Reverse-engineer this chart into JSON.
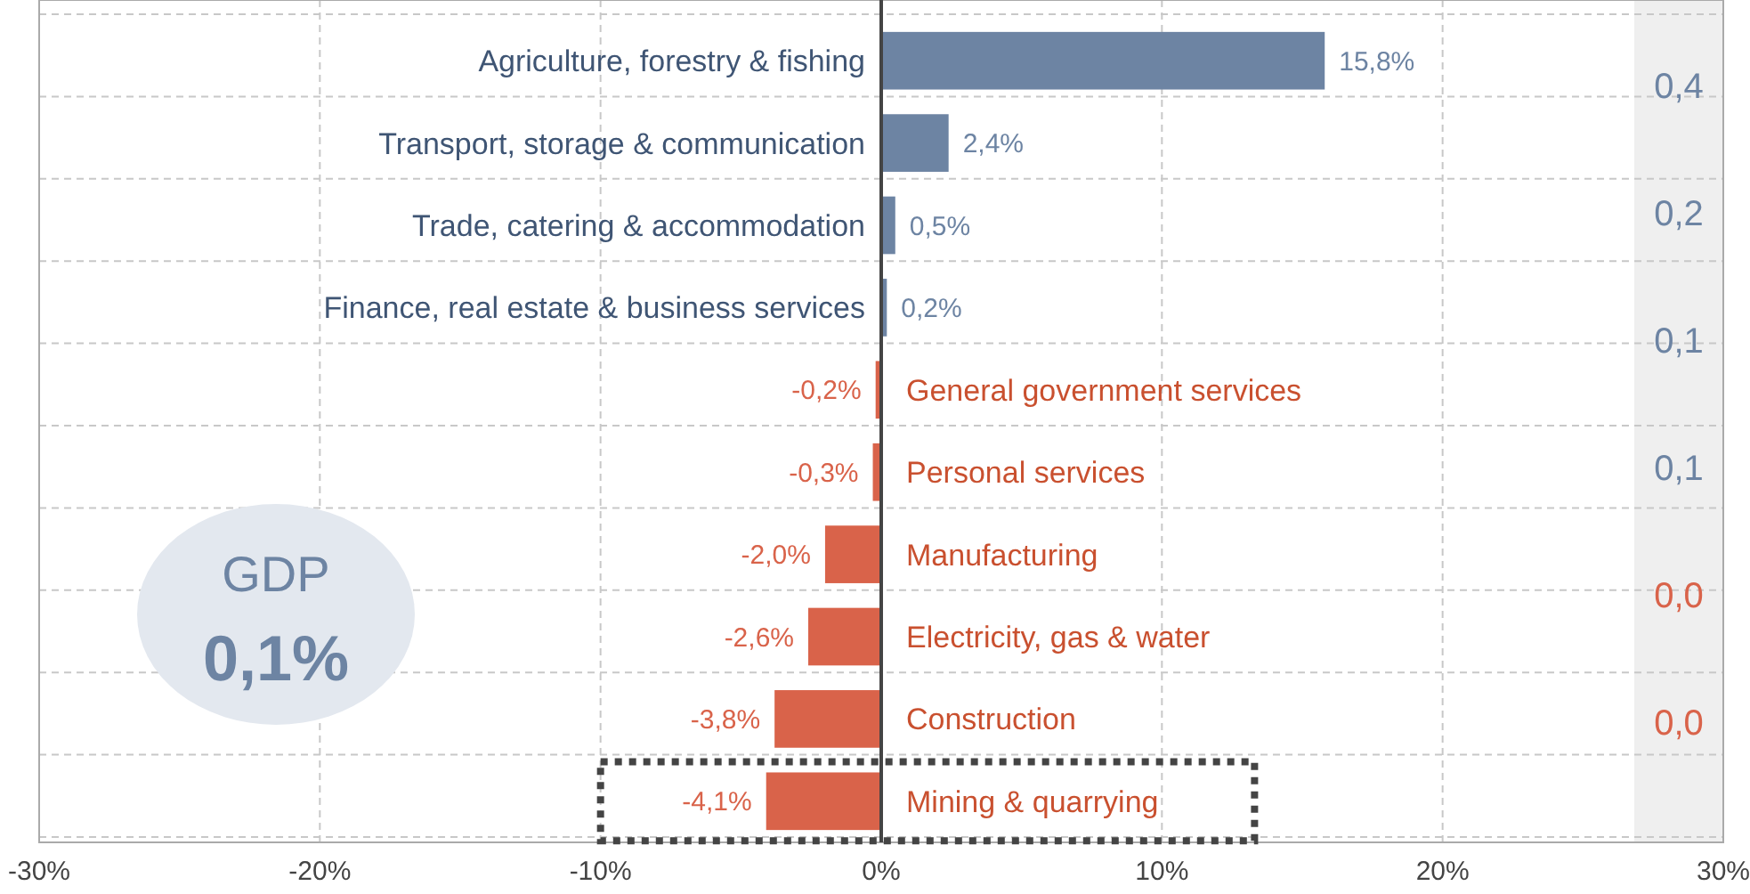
{
  "chart_data": {
    "type": "bar",
    "orientation": "horizontal",
    "categories": [
      "Agriculture, forestry & fishing",
      "Transport, storage & communication",
      "Trade, catering & accommodation",
      "Finance, real estate & business services",
      "General government services",
      "Personal services",
      "Manufacturing",
      "Electricity, gas & water",
      "Construction",
      "Mining & quarrying"
    ],
    "values": [
      15.8,
      2.4,
      0.5,
      0.2,
      -0.2,
      -0.3,
      -2.0,
      -2.6,
      -3.8,
      -4.1
    ],
    "colors": [
      "#6d84a3",
      "#6d84a3",
      "#6d84a3",
      "#6d84a3",
      "#d9634a",
      "#d9634a",
      "#d9634a",
      "#d9634a",
      "#d9634a",
      "#d9634a"
    ],
    "value_labels": [
      "15,8%",
      "2,4%",
      "0,5%",
      "0,2%",
      "-0,2%",
      "-0,3%",
      "-2,0%",
      "-2,6%",
      "-3,8%",
      "-4,1%"
    ],
    "xlim": [
      -30,
      30
    ],
    "xticks": [
      {
        "value": -30,
        "label": "-30%"
      },
      {
        "value": -20,
        "label": "-20%"
      },
      {
        "value": -10,
        "label": "-10%"
      },
      {
        "value": 0,
        "label": "0%"
      },
      {
        "value": 10,
        "label": "10%"
      },
      {
        "value": 20,
        "label": "20%"
      },
      {
        "value": 30,
        "label": "30%"
      }
    ],
    "grid": true,
    "annotations": [
      "GDP",
      "0,1%",
      "0,4",
      "0,2",
      "0,1",
      "0,1",
      "0,0",
      "0,0"
    ]
  }
}
